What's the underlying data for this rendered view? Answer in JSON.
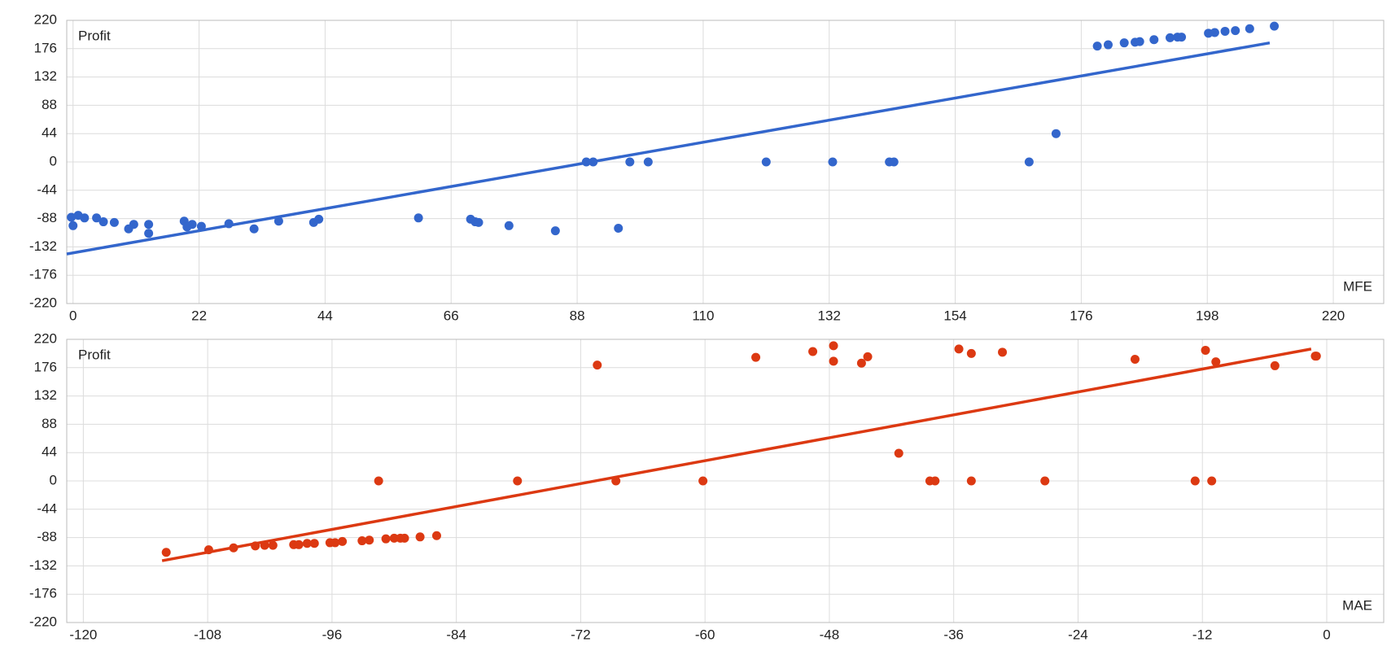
{
  "chart_data": [
    {
      "type": "scatter",
      "xlabel": "MFE",
      "ylabel": "Profit",
      "color": "#3366cc",
      "grid": true,
      "xlim": [
        -1.1,
        228.8
      ],
      "ylim": [
        -220,
        220
      ],
      "xticks": [
        0,
        22,
        44,
        66,
        88,
        110,
        132,
        154,
        176,
        198,
        220
      ],
      "yticks": [
        -220,
        -176,
        -132,
        -88,
        -44,
        0,
        44,
        88,
        132,
        176,
        220
      ],
      "x": [
        -0.3,
        0,
        0.9,
        2,
        4.1,
        5.3,
        7.2,
        9.7,
        10.6,
        13.2,
        13.2,
        19.4,
        19.9,
        20.8,
        22.4,
        27.2,
        31.6,
        35.9,
        42,
        42.9,
        60.3,
        69.4,
        70.2,
        70.8,
        76.1,
        84.2,
        89.6,
        90.8,
        95.2,
        97.2,
        100.4,
        121,
        132.6,
        142.5,
        143.3,
        166.9,
        171.6,
        178.8,
        180.7,
        183.5,
        185.4,
        186.2,
        188.7,
        191.5,
        192.8,
        193.5,
        198.2,
        199.3,
        201.1,
        202.9,
        205.4,
        209.7
      ],
      "values": [
        -86,
        -99,
        -83,
        -87,
        -87,
        -93,
        -94,
        -104,
        -97,
        -97,
        -111,
        -92,
        -101,
        -97,
        -100,
        -96,
        -104,
        -92,
        -94,
        -89,
        -87,
        -89,
        -93,
        -94,
        -99,
        -107,
        0,
        0,
        -103,
        0,
        0,
        0,
        0,
        0,
        0,
        0,
        44,
        180,
        182,
        185,
        186,
        187,
        190,
        193,
        194,
        194,
        200,
        201,
        203,
        204,
        207,
        211
      ],
      "trendline": {
        "x": [
          -1.1,
          208.9
        ],
        "y": [
          -143,
          185
        ]
      }
    },
    {
      "type": "scatter",
      "xlabel": "MAE",
      "ylabel": "Profit",
      "color": "#dc3912",
      "grid": true,
      "xlim": [
        -121.6,
        5.5
      ],
      "ylim": [
        -220,
        220
      ],
      "xticks": [
        -120,
        -108,
        -96,
        -84,
        -72,
        -60,
        -48,
        -36,
        -24,
        -12,
        0
      ],
      "yticks": [
        -220,
        -176,
        -132,
        -88,
        -44,
        0,
        44,
        88,
        132,
        176,
        220
      ],
      "x": [
        -112,
        -107.9,
        -105.5,
        -103.4,
        -102.5,
        -101.7,
        -99.7,
        -99.2,
        -98.4,
        -97.7,
        -96.2,
        -95.7,
        -95,
        -93.1,
        -92.4,
        -91.5,
        -90.8,
        -90,
        -89.4,
        -89,
        -87.5,
        -85.9,
        -78.1,
        -70.4,
        -68.6,
        -60.2,
        -55.1,
        -49.6,
        -47.6,
        -47.6,
        -44.9,
        -44.3,
        -41.3,
        -38.3,
        -37.8,
        -35.5,
        -34.3,
        -34.3,
        -31.3,
        -27.2,
        -18.5,
        -12.7,
        -11.7,
        -11.1,
        -10.7,
        -5,
        -1.1,
        -1
      ],
      "values": [
        -111,
        -107,
        -104,
        -101,
        -100,
        -100,
        -99,
        -99,
        -97,
        -97,
        -96,
        -96,
        -94,
        -93,
        -92,
        0,
        -90,
        -89,
        -89,
        -89,
        -87,
        -85,
        0,
        180,
        0,
        0,
        192,
        201,
        210,
        186,
        183,
        193,
        43,
        0,
        0,
        205,
        198,
        0,
        200,
        0,
        189,
        0,
        203,
        0,
        185,
        179,
        194,
        194
      ],
      "trendline": {
        "x": [
          -112.4,
          -1.5
        ],
        "y": [
          -124,
          205
        ]
      }
    }
  ]
}
